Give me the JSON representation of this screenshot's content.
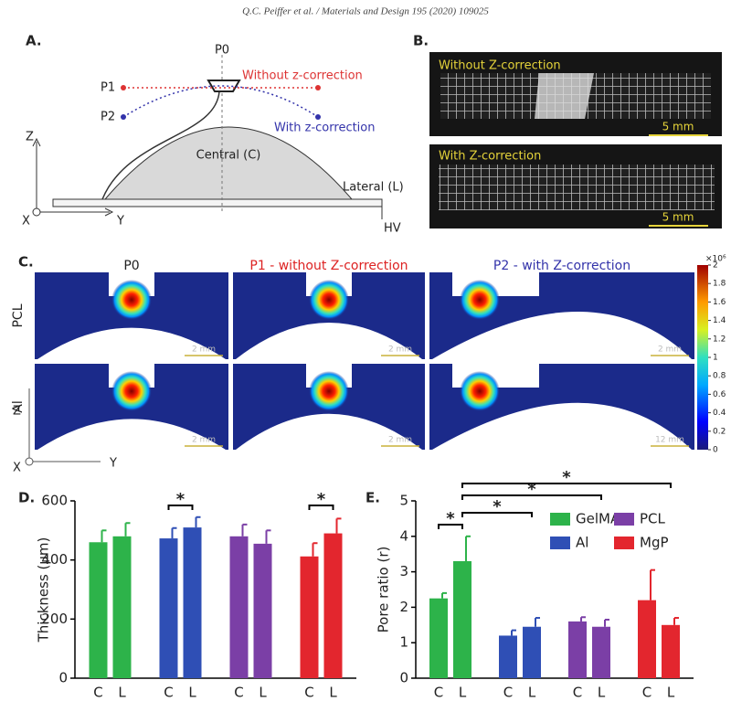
{
  "header": {
    "citation": "Q.C. Peiffer et al. / Materials and Design 195 (2020) 109025"
  },
  "panel_a": {
    "label": "A.",
    "p0": "P0",
    "p1": "P1",
    "p2": "P2",
    "without": "Without z-correction",
    "with": "With z-correction",
    "central": "Central (C)",
    "lateral": "Lateral (L)",
    "axis_z": "Z",
    "axis_y": "Y",
    "axis_x": "X",
    "hv": "HV"
  },
  "panel_b": {
    "label": "B.",
    "images": [
      {
        "caption": "Without Z-correction",
        "scale": "5 mm"
      },
      {
        "caption": "With Z-correction",
        "scale": "5 mm"
      }
    ]
  },
  "panel_c": {
    "label": "C.",
    "columns": [
      "P0",
      "P1 - without Z-correction",
      "P2 - with Z-correction"
    ],
    "rows": [
      "PCL",
      "Al"
    ],
    "scale_bars": [
      "2 mm",
      "2 mm",
      "2 mm",
      "2 mm",
      "2 mm",
      "12 mm"
    ],
    "axis_z": "Z",
    "axis_y": "Y",
    "axis_x": "X",
    "colorbar": {
      "unit": "×10⁶",
      "ticks": [
        0,
        0.2,
        0.4,
        0.6,
        0.8,
        1,
        1.2,
        1.4,
        1.6,
        1.8,
        2
      ]
    }
  },
  "chart_data": [
    {
      "type": "bar",
      "label": "D.",
      "y_label": "Thickness (µm)",
      "categories": [
        "C",
        "L"
      ],
      "ylim": [
        0,
        600
      ],
      "yticks": [
        0,
        200,
        400,
        600
      ],
      "series": [
        {
          "color": "#2db34a",
          "values": [
            460,
            480
          ],
          "errors": [
            40,
            45
          ]
        },
        {
          "color": "#2f4fb5",
          "values": [
            473,
            510
          ],
          "errors": [
            35,
            35
          ]
        },
        {
          "color": "#7b3fa6",
          "values": [
            480,
            455
          ],
          "errors": [
            40,
            45
          ]
        },
        {
          "color": "#e3262e",
          "values": [
            412,
            490
          ],
          "errors": [
            45,
            50
          ]
        }
      ],
      "annotations": [
        "*",
        "*"
      ]
    },
    {
      "type": "bar",
      "label": "E.",
      "y_label": "Pore ratio (r)",
      "categories": [
        "C",
        "L"
      ],
      "ylim": [
        0,
        5
      ],
      "yticks": [
        0,
        1,
        2,
        3,
        4,
        5
      ],
      "series": [
        {
          "name": "GelMA",
          "color": "#2db34a",
          "values": [
            2.25,
            3.3
          ],
          "errors": [
            0.15,
            0.7
          ]
        },
        {
          "name": "Al",
          "color": "#2f4fb5",
          "values": [
            1.2,
            1.45
          ],
          "errors": [
            0.15,
            0.25
          ]
        },
        {
          "name": "PCL",
          "color": "#7b3fa6",
          "values": [
            1.6,
            1.45
          ],
          "errors": [
            0.12,
            0.2
          ]
        },
        {
          "name": "MgP",
          "color": "#e3262e",
          "values": [
            2.2,
            1.5
          ],
          "errors": [
            0.85,
            0.2
          ]
        }
      ],
      "annotations": [
        "*",
        "*",
        "*",
        "*"
      ]
    }
  ]
}
